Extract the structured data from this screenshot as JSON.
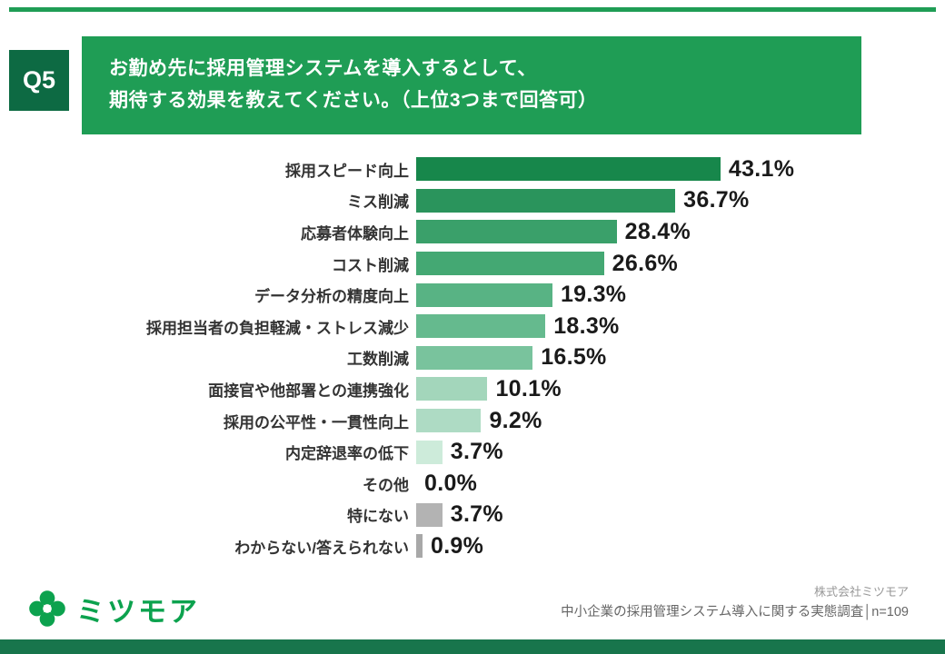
{
  "header": {
    "q_label": "Q5",
    "title_lines": [
      "お勤め先に採用管理システムを導入するとして、",
      "期待する効果を教えてください。（上位3つまで回答可）"
    ]
  },
  "chart_data": {
    "type": "bar",
    "orientation": "horizontal",
    "title": "お勤め先に採用管理システムを導入するとして、期待する効果を教えてください。（上位3つまで回答可）",
    "xlabel": "",
    "ylabel": "",
    "xlim": [
      0,
      45
    ],
    "grid": false,
    "legend": "none",
    "categories": [
      "採用スピード向上",
      "ミス削減",
      "応募者体験向上",
      "コスト削減",
      "データ分析の精度向上",
      "採用担当者の負担軽減・ストレス減少",
      "工数削減",
      "面接官や他部署との連携強化",
      "採用の公平性・一貫性向上",
      "内定辞退率の低下",
      "その他",
      "特にない",
      "わからない/答えられない"
    ],
    "values": [
      43.1,
      36.7,
      28.4,
      26.6,
      19.3,
      18.3,
      16.5,
      10.1,
      9.2,
      3.7,
      0.0,
      3.7,
      0.9
    ],
    "value_labels": [
      "43.1%",
      "36.7%",
      "28.4%",
      "26.6%",
      "19.3%",
      "18.3%",
      "16.5%",
      "10.1%",
      "9.2%",
      "3.7%",
      "0.0%",
      "3.7%",
      "0.9%"
    ],
    "bar_colors": [
      "#17874b",
      "#2a945c",
      "#3aa06a",
      "#44a873",
      "#58b384",
      "#65ba8e",
      "#79c39d",
      "#a3d6bb",
      "#aedbc4",
      "#cdebda",
      "#cdebda",
      "#b3b3b3",
      "#a8a8a8"
    ]
  },
  "footer": {
    "logo_text": "ミツモア",
    "company": "株式会社ミツモア",
    "survey_line": "中小企業の採用管理システム導入に関する実態調査│n=109"
  },
  "colors": {
    "header_green": "#1f9d55",
    "qbox_green": "#0d6a43",
    "brand_green": "#0ca24e",
    "bottom_band_green": "#18754c",
    "value_text": "#1a1a1a",
    "category_text": "#333333"
  }
}
